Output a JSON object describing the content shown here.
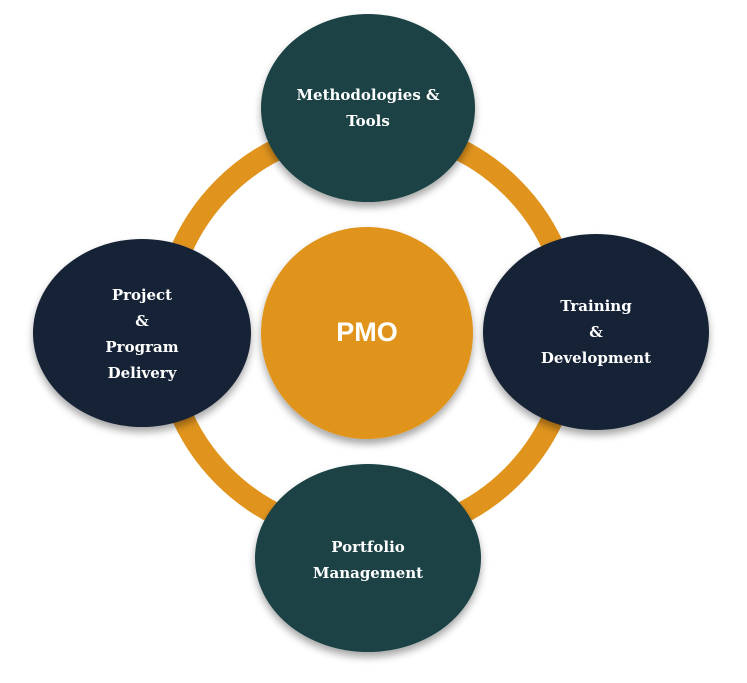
{
  "center": {
    "label": "PMO"
  },
  "nodes": {
    "top": {
      "lines": [
        "Methodologies &",
        "Tools"
      ]
    },
    "right": {
      "lines": [
        "Training",
        "&",
        "Development"
      ]
    },
    "bottom": {
      "lines": [
        "Portfolio",
        "Management"
      ]
    },
    "left": {
      "lines": [
        "Project",
        "&",
        "Program",
        "Delivery"
      ]
    }
  },
  "colors": {
    "ring": "#e0941d",
    "center_fill": "#e0941d",
    "teal_node": "#1a4245",
    "navy_node": "#182335",
    "label_text": "#ffffff"
  }
}
